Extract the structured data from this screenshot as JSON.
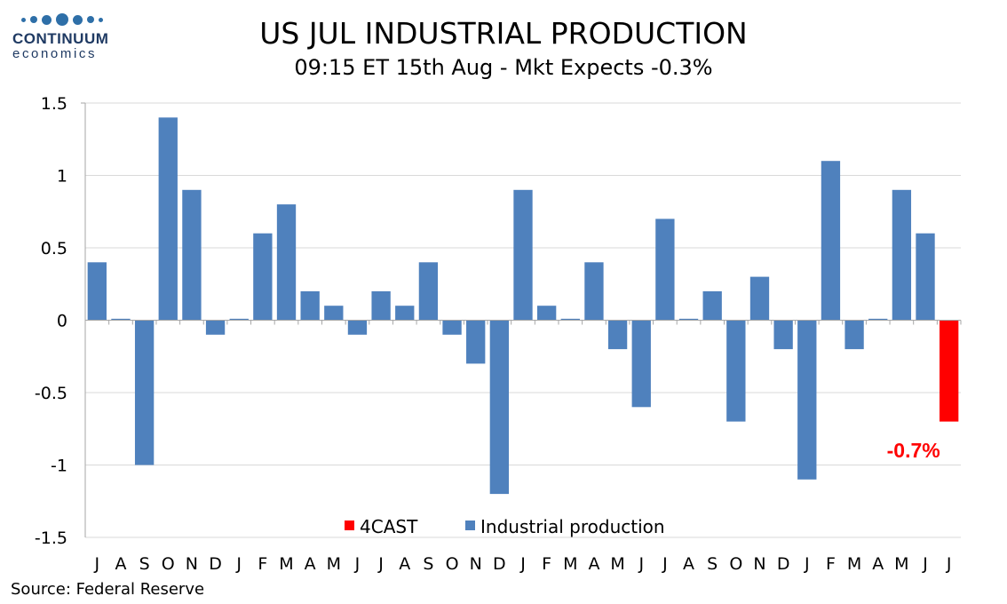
{
  "logo": {
    "name": "CONTINUUM",
    "sub": "economics"
  },
  "title": "US JUL INDUSTRIAL PRODUCTION",
  "subtitle": "09:15 ET 15th Aug - Mkt Expects -0.3%",
  "source": "Source: Federal Reserve",
  "colors": {
    "series": "#4f81bd",
    "forecast": "#ff0000",
    "grid": "#d9d9d9",
    "axis": "#a6a6a6"
  },
  "chart_data": {
    "type": "bar",
    "categories": [
      "J",
      "A",
      "S",
      "O",
      "N",
      "D",
      "J",
      "F",
      "M",
      "A",
      "M",
      "J",
      "J",
      "A",
      "S",
      "O",
      "N",
      "D",
      "J",
      "F",
      "M",
      "A",
      "M",
      "J",
      "J",
      "A",
      "S",
      "O",
      "N",
      "D",
      "J",
      "F",
      "M",
      "A",
      "M",
      "J",
      "J"
    ],
    "series": [
      {
        "name": "Industrial production",
        "color": "#4f81bd",
        "values": [
          0.4,
          0.01,
          -1.0,
          1.4,
          0.9,
          -0.1,
          0.01,
          0.6,
          0.8,
          0.2,
          0.1,
          -0.1,
          0.2,
          0.1,
          0.4,
          -0.1,
          -0.3,
          -1.2,
          0.9,
          0.1,
          0.01,
          0.4,
          -0.2,
          -0.6,
          0.7,
          0.01,
          0.2,
          -0.7,
          0.3,
          -0.2,
          -1.1,
          1.1,
          -0.2,
          0.01,
          0.9,
          0.6,
          null
        ]
      },
      {
        "name": "4CAST",
        "color": "#ff0000",
        "values": [
          null,
          null,
          null,
          null,
          null,
          null,
          null,
          null,
          null,
          null,
          null,
          null,
          null,
          null,
          null,
          null,
          null,
          null,
          null,
          null,
          null,
          null,
          null,
          null,
          null,
          null,
          null,
          null,
          null,
          null,
          null,
          null,
          null,
          null,
          null,
          null,
          -0.7
        ]
      }
    ],
    "yticks": [
      "1.5",
      "1",
      "0.5",
      "0",
      "-0.5",
      "-1",
      "-1.5"
    ],
    "ylim": [
      -1.5,
      1.5
    ],
    "grid": true,
    "legend_position": "bottom",
    "annotation": "-0.7%",
    "xlabel": "",
    "ylabel": ""
  }
}
